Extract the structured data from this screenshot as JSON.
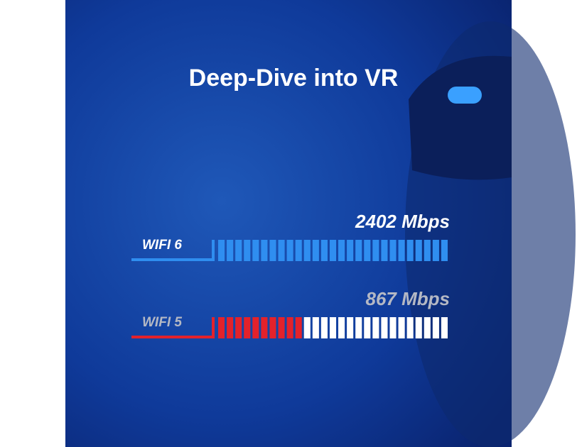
{
  "chart_data": {
    "type": "hbar",
    "title": "Deep-Dive into VR",
    "categories": [
      "WIFI 6",
      "WIFI 5"
    ],
    "values": [
      2402,
      867
    ],
    "value_labels": [
      "2402 Mbps",
      "867 Mbps"
    ],
    "colors": [
      "#2f8ef0",
      "#e3222b"
    ]
  }
}
